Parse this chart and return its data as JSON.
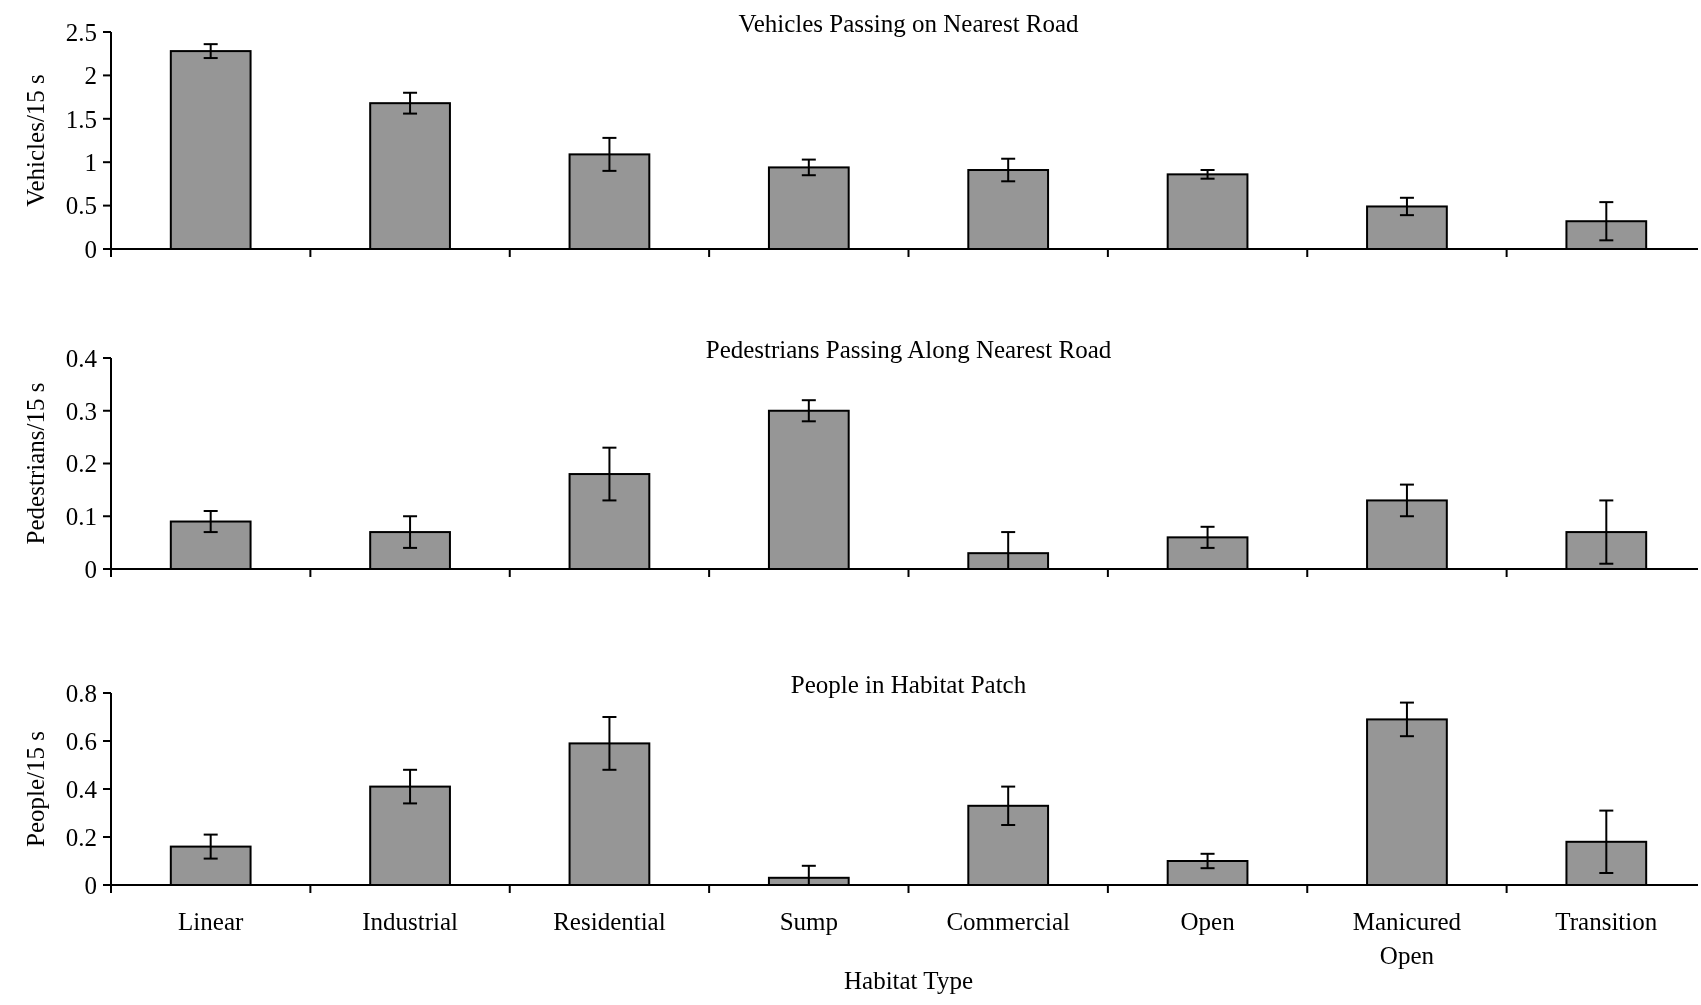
{
  "chart_data": [
    {
      "type": "bar",
      "title": "Vehicles Passing on Nearest Road",
      "ylabel": "Vehicles/15 s",
      "categories": [
        null,
        null,
        null,
        null,
        null,
        null,
        null,
        null
      ],
      "values": [
        2.28,
        1.68,
        1.09,
        0.94,
        0.91,
        0.86,
        0.49,
        0.32
      ],
      "errors": [
        0.08,
        0.12,
        0.19,
        0.09,
        0.13,
        0.05,
        0.1,
        0.22
      ],
      "color": "#969696",
      "ylim": [
        0,
        2.5
      ],
      "yticks": [
        0,
        0.5,
        1,
        1.5,
        2,
        2.5
      ],
      "tick_labels": "y"
    },
    {
      "type": "bar",
      "title": "Pedestrians Passing Along Nearest Road",
      "ylabel": "Pedestrians/15 s",
      "categories": [
        null,
        null,
        null,
        null,
        null,
        null,
        null,
        null
      ],
      "values": [
        0.09,
        0.07,
        0.18,
        0.3,
        0.03,
        0.06,
        0.13,
        0.07
      ],
      "errors": [
        0.02,
        0.03,
        0.05,
        0.02,
        [
          0,
          0.07
        ],
        0.02,
        0.03,
        0.06
      ],
      "color": "#969696",
      "ylim": [
        0,
        0.4
      ],
      "yticks": [
        0,
        0.1,
        0.2,
        0.3,
        0.4
      ],
      "tick_labels": "y"
    },
    {
      "type": "bar",
      "title": "People in Habitat Patch",
      "ylabel": "People/15 s",
      "xlabel": "Habitat Type",
      "categories": [
        "Linear",
        "Industrial",
        "Residential",
        "Sump",
        "Commercial",
        "Open",
        "Manicured Open",
        "Transition"
      ],
      "values": [
        0.16,
        0.41,
        0.59,
        0.03,
        0.33,
        0.1,
        0.69,
        0.18
      ],
      "errors": [
        0.05,
        0.07,
        0.11,
        [
          0,
          0.08
        ],
        0.08,
        0.03,
        0.07,
        0.13
      ],
      "color": "#969696",
      "ylim": [
        0,
        0.8
      ],
      "yticks": [
        0,
        0.2,
        0.4,
        0.6,
        0.8
      ]
    }
  ]
}
